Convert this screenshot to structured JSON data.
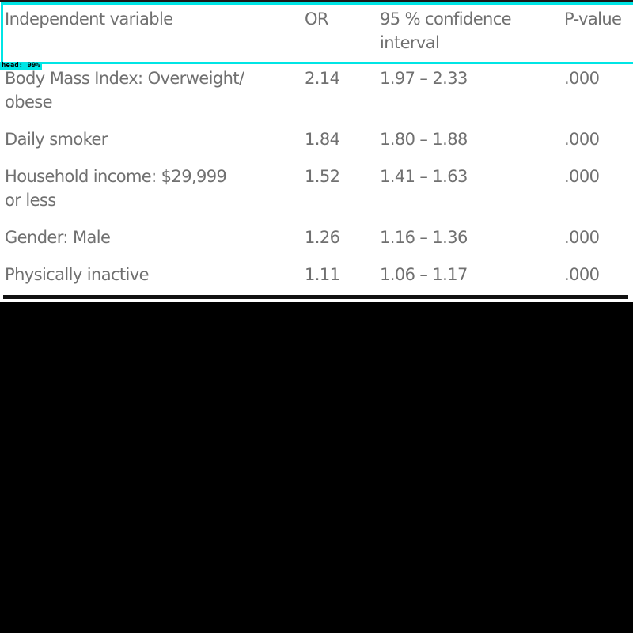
{
  "detection": {
    "label": "head:  99%",
    "color": "#00e5e5"
  },
  "table": {
    "headers": {
      "variable": "Independent variable",
      "or": "OR",
      "ci_line1": "95 % confidence",
      "ci_line2": "interval",
      "p_value": "P-value"
    },
    "rows": [
      {
        "variable_line1": "Body Mass Index: Overweight/",
        "variable_line2": "obese",
        "or": "2.14",
        "ci": "1.97 – 2.33",
        "p": ".000"
      },
      {
        "variable_line1": "Daily smoker",
        "variable_line2": "",
        "or": "1.84",
        "ci": "1.80 – 1.88",
        "p": ".000"
      },
      {
        "variable_line1": "Household income: $29,999",
        "variable_line2": "or less",
        "or": "1.52",
        "ci": "1.41 – 1.63",
        "p": ".000"
      },
      {
        "variable_line1": "Gender: Male",
        "variable_line2": "",
        "or": "1.26",
        "ci": "1.16 – 1.36",
        "p": ".000"
      },
      {
        "variable_line1": "Physically inactive",
        "variable_line2": "",
        "or": "1.11",
        "ci": "1.06 – 1.17",
        "p": ".000"
      }
    ]
  },
  "colors": {
    "text": "#707070",
    "rule": "#111111",
    "background": "#000000"
  }
}
